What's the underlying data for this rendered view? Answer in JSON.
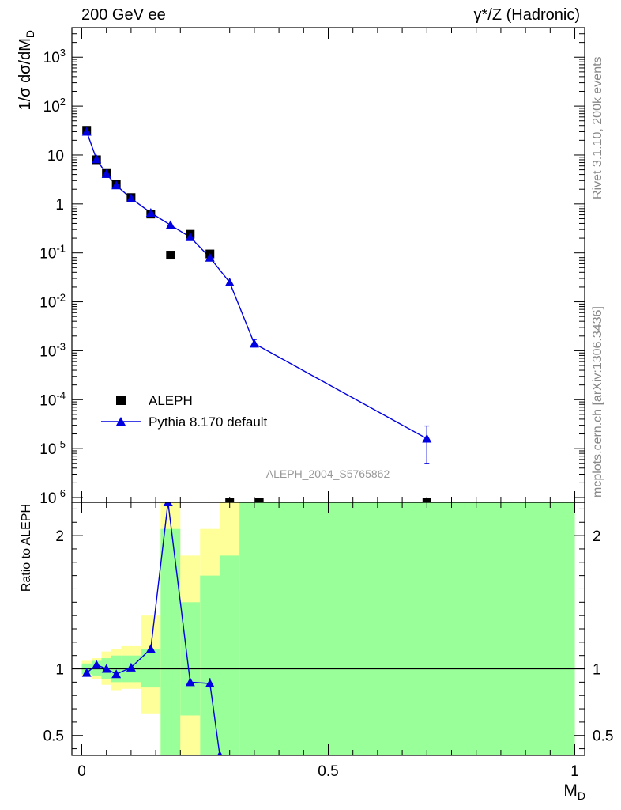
{
  "header": {
    "left_title": "200 GeV ee",
    "right_title": "γ*/Z (Hadronic)"
  },
  "side_labels": {
    "rivet": "Rivet 3.1.10,  200k events",
    "mcplots": "mcplots.cern.ch [arXiv:1306.3436]"
  },
  "analysis_label": "ALEPH_2004_S5765862",
  "colors": {
    "data": "#000000",
    "mc": "#0000e0",
    "band_stat": "#99ff99",
    "band_total": "#ffff99"
  },
  "chart_data": [
    {
      "type": "scatter",
      "panel": "main",
      "ylabel": "1/σ  dσ/dM_D",
      "yscale": "log",
      "ylim": [
        8e-07,
        4000
      ],
      "xlim": [
        -0.02,
        1.02
      ],
      "y_ticks": [
        "10^3",
        "10^2",
        "10",
        "1",
        "10^-1",
        "10^-2",
        "10^-3",
        "10^-4",
        "10^-5",
        "10^-6"
      ],
      "legend": {
        "placement": "lower-left",
        "entries": [
          "ALEPH",
          "Pythia 8.170 default"
        ]
      },
      "series": [
        {
          "name": "ALEPH",
          "marker": "square",
          "x": [
            0.01,
            0.03,
            0.05,
            0.07,
            0.1,
            0.14,
            0.18,
            0.22,
            0.26
          ],
          "y": [
            32,
            8.0,
            4.2,
            2.5,
            1.35,
            0.62,
            0.09,
            0.24,
            0.095
          ]
        },
        {
          "name": "Pythia 8.170 default",
          "marker": "triangle",
          "x": [
            0.01,
            0.03,
            0.05,
            0.07,
            0.1,
            0.14,
            0.18,
            0.22,
            0.26,
            0.3,
            0.35,
            0.7
          ],
          "y": [
            30,
            8.2,
            4.1,
            2.4,
            1.3,
            0.66,
            0.37,
            0.21,
            0.08,
            0.025,
            0.0014,
            1.6e-05
          ],
          "y_err_low": [
            0,
            0,
            0,
            0,
            0,
            0,
            0,
            0,
            0,
            0,
            0.0002,
            1.1e-05
          ],
          "y_err_high": [
            0,
            0,
            0,
            0,
            0,
            0,
            0,
            0,
            0,
            0,
            0.0003,
            1.3e-05
          ]
        }
      ],
      "offscale_markers_x": [
        0.3,
        0.36,
        0.7
      ]
    },
    {
      "type": "line",
      "panel": "ratio",
      "ylabel": "Ratio to ALEPH",
      "xlabel": "M_D",
      "ylim": [
        0.35,
        2.25
      ],
      "xlim": [
        -0.02,
        1.02
      ],
      "x_ticks": [
        "0",
        "0.5",
        "1"
      ],
      "y_ticks": [
        "0.5",
        "1",
        "2"
      ],
      "bins": [
        {
          "lo": 0.0,
          "hi": 0.02,
          "stat": [
            0.96,
            1.04
          ],
          "total": [
            0.95,
            1.06
          ]
        },
        {
          "lo": 0.02,
          "hi": 0.04,
          "stat": [
            0.95,
            1.06
          ],
          "total": [
            0.92,
            1.08
          ]
        },
        {
          "lo": 0.04,
          "hi": 0.06,
          "stat": [
            0.92,
            1.08
          ],
          "total": [
            0.88,
            1.13
          ]
        },
        {
          "lo": 0.06,
          "hi": 0.08,
          "stat": [
            0.9,
            1.1
          ],
          "total": [
            0.84,
            1.15
          ]
        },
        {
          "lo": 0.08,
          "hi": 0.12,
          "stat": [
            0.9,
            1.1
          ],
          "total": [
            0.85,
            1.17
          ]
        },
        {
          "lo": 0.12,
          "hi": 0.16,
          "stat": [
            0.86,
            1.15
          ],
          "total": [
            0.66,
            1.4
          ]
        },
        {
          "lo": 0.16,
          "hi": 0.2,
          "stat": [
            0.35,
            2.05
          ],
          "total": [
            0.35,
            2.25
          ]
        },
        {
          "lo": 0.2,
          "hi": 0.24,
          "stat": [
            0.35,
            1.5
          ],
          "total": [
            0.35,
            1.85
          ]
        },
        {
          "lo": 0.24,
          "hi": 0.28,
          "stat": [
            0.35,
            1.7
          ],
          "total": [
            0.35,
            2.05
          ]
        },
        {
          "lo": 0.28,
          "hi": 0.32,
          "stat": [
            0.35,
            1.85
          ],
          "total": [
            0.35,
            2.25
          ]
        },
        {
          "lo": 0.32,
          "hi": 1.0,
          "stat": [
            0.35,
            2.25
          ],
          "total": [
            0.35,
            2.25
          ]
        }
      ],
      "band_gaps": [
        {
          "lo": 0.2,
          "hi": 0.24,
          "total_only": [
            0.35,
            0.65
          ]
        }
      ],
      "series": [
        {
          "name": "Pythia 8.170 default",
          "marker": "triangle",
          "x": [
            0.01,
            0.03,
            0.05,
            0.07,
            0.1,
            0.14,
            0.175,
            0.22,
            0.26,
            0.28
          ],
          "y": [
            0.97,
            1.03,
            1.0,
            0.96,
            1.01,
            1.15,
            2.25,
            0.9,
            0.89,
            0.35
          ]
        }
      ]
    }
  ]
}
